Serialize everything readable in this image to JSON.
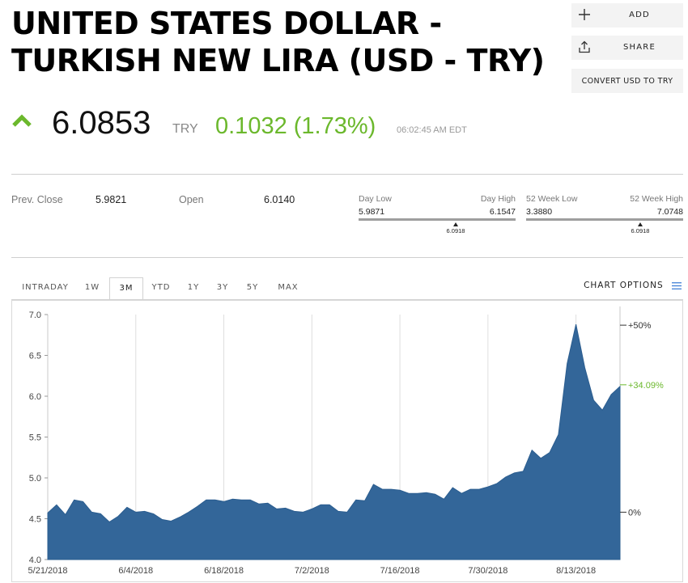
{
  "header": {
    "title_line1": "UNITED STATES DOLLAR -",
    "title_line2": "TURKISH NEW LIRA (USD - TRY)"
  },
  "actions": {
    "add_label": "ADD",
    "share_label": "SHARE",
    "convert_label": "CONVERT USD TO TRY",
    "add_icon": "plus-icon",
    "share_icon": "share-icon"
  },
  "quote": {
    "price": "6.0853",
    "currency": "TRY",
    "change": "0.1032 (1.73%)",
    "time": "06:02:45 AM EDT",
    "direction_icon": "up-arrow-icon",
    "up_color": "#6bb82c"
  },
  "stats": {
    "prev_close_label": "Prev. Close",
    "prev_close_value": "5.9821",
    "open_label": "Open",
    "open_value": "6.0140",
    "day_low_label": "Day Low",
    "day_high_label": "Day High",
    "day_low": "5.9871",
    "day_high": "6.1547",
    "day_current": "6.0918",
    "week52_low_label": "52 Week Low",
    "week52_high_label": "52 Week High",
    "week52_low": "3.3880",
    "week52_high": "7.0748",
    "week52_current": "6.0918"
  },
  "tabs": {
    "items": [
      "INTRADAY",
      "1W",
      "3M",
      "YTD",
      "1Y",
      "3Y",
      "5Y",
      "MAX"
    ],
    "active": "3M",
    "chart_options_label": "CHART OPTIONS",
    "chart_options_icon": "hamburger-icon"
  },
  "chart_data": {
    "type": "area",
    "fill_color": "#336699",
    "x_tick_labels": [
      "5/21/2018",
      "6/4/2018",
      "6/18/2018",
      "7/2/2018",
      "7/16/2018",
      "7/30/2018",
      "8/13/2018"
    ],
    "ylim": [
      4.0,
      7.0
    ],
    "y_ticks": [
      "4.0",
      "4.5",
      "5.0",
      "5.5",
      "6.0",
      "6.5",
      "7.0"
    ],
    "grid": true,
    "right_axis": [
      {
        "label": "+50%",
        "value": 6.87
      },
      {
        "label": "+34.09%",
        "value": 6.14,
        "color": "#6bb82c"
      },
      {
        "label": "0%",
        "value": 4.58
      }
    ],
    "series": [
      {
        "x": [
          "5/21/2018",
          "5/22/2018",
          "5/23/2018",
          "5/24/2018",
          "5/25/2018",
          "5/28/2018",
          "5/29/2018",
          "5/30/2018",
          "5/31/2018",
          "6/1/2018",
          "6/4/2018",
          "6/5/2018",
          "6/6/2018",
          "6/7/2018",
          "6/8/2018",
          "6/11/2018",
          "6/12/2018",
          "6/13/2018",
          "6/14/2018",
          "6/15/2018",
          "6/18/2018",
          "6/19/2018",
          "6/20/2018",
          "6/21/2018",
          "6/22/2018",
          "6/25/2018",
          "6/26/2018",
          "6/27/2018",
          "6/28/2018",
          "6/29/2018",
          "7/2/2018",
          "7/3/2018",
          "7/4/2018",
          "7/5/2018",
          "7/6/2018",
          "7/9/2018",
          "7/10/2018",
          "7/11/2018",
          "7/12/2018",
          "7/13/2018",
          "7/16/2018",
          "7/17/2018",
          "7/18/2018",
          "7/19/2018",
          "7/20/2018",
          "7/23/2018",
          "7/24/2018",
          "7/25/2018",
          "7/26/2018",
          "7/27/2018",
          "7/30/2018",
          "7/31/2018",
          "8/1/2018",
          "8/2/2018",
          "8/3/2018",
          "8/6/2018",
          "8/7/2018",
          "8/8/2018",
          "8/9/2018",
          "8/10/2018",
          "8/13/2018",
          "8/14/2018",
          "8/15/2018",
          "8/16/2018",
          "8/17/2018",
          "8/20/2018"
        ],
        "values": [
          4.57,
          4.67,
          4.55,
          4.73,
          4.71,
          4.58,
          4.56,
          4.46,
          4.53,
          4.64,
          4.58,
          4.59,
          4.56,
          4.49,
          4.47,
          4.52,
          4.58,
          4.65,
          4.73,
          4.73,
          4.71,
          4.74,
          4.73,
          4.73,
          4.68,
          4.69,
          4.62,
          4.63,
          4.59,
          4.58,
          4.62,
          4.67,
          4.67,
          4.59,
          4.58,
          4.73,
          4.72,
          4.92,
          4.86,
          4.86,
          4.85,
          4.81,
          4.81,
          4.82,
          4.8,
          4.74,
          4.88,
          4.81,
          4.86,
          4.86,
          4.89,
          4.93,
          5.01,
          5.06,
          5.08,
          5.34,
          5.24,
          5.31,
          5.53,
          6.4,
          6.88,
          6.35,
          5.95,
          5.83,
          6.02,
          6.12
        ]
      }
    ]
  }
}
